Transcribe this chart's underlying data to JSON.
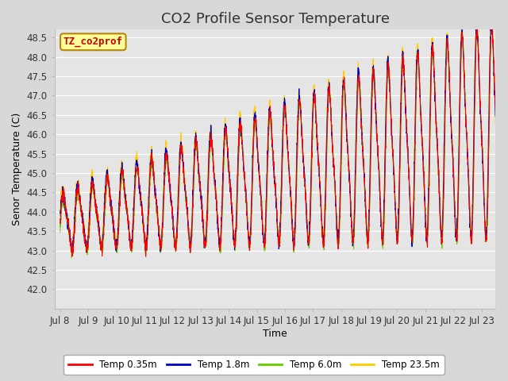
{
  "title": "CO2 Profile Sensor Temperature",
  "xlabel": "Time",
  "ylabel": "Senor Temperature (C)",
  "ylim": [
    41.5,
    48.7
  ],
  "background_color": "#e5e5e5",
  "legend_label": "TZ_co2prof",
  "legend_box_color": "#ffff99",
  "legend_box_edge": "#b8860b",
  "series_colors": [
    "#ff0000",
    "#0000cc",
    "#66cc00",
    "#ffcc00"
  ],
  "series_labels": [
    "Temp 0.35m",
    "Temp 1.8m",
    "Temp 6.0m",
    "Temp 23.5m"
  ],
  "x_tick_labels": [
    "Jul 8",
    "Jul 9",
    "Jul 10",
    "Jul 11",
    "Jul 12",
    "Jul 13",
    "Jul 14",
    "Jul 15",
    "Jul 16",
    "Jul 17",
    "Jul 18",
    "Jul 19",
    "Jul 20",
    "Jul 21",
    "Jul 22",
    "Jul 23"
  ],
  "x_tick_positions": [
    0,
    1,
    2,
    3,
    4,
    5,
    6,
    7,
    8,
    9,
    10,
    11,
    12,
    13,
    14,
    15
  ],
  "yticks": [
    42.0,
    42.5,
    43.0,
    43.5,
    44.0,
    44.5,
    45.0,
    45.5,
    46.0,
    46.5,
    47.0,
    47.5,
    48.0,
    48.5
  ],
  "title_fontsize": 13,
  "axis_fontsize": 9,
  "tick_fontsize": 8.5
}
